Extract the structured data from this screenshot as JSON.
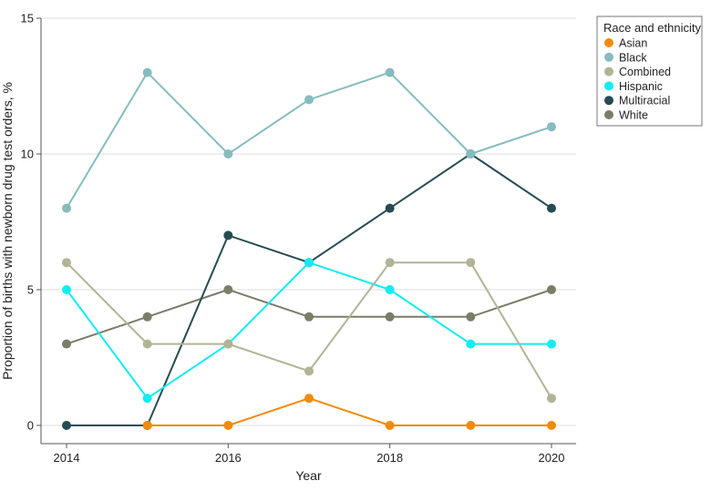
{
  "chart_data": {
    "type": "line",
    "title": "",
    "xlabel": "Year",
    "ylabel": "Proportion of births with newborn drug test orders, %",
    "x": [
      2014,
      2015,
      2016,
      2017,
      2018,
      2019,
      2020
    ],
    "xticks": [
      2014,
      2016,
      2018,
      2020
    ],
    "xlim": [
      2014,
      2020
    ],
    "yticks": [
      0,
      5,
      10,
      15
    ],
    "ylim": [
      0,
      15
    ],
    "grid": "horizontal",
    "legend": {
      "title": "Race and ethnicity",
      "placement": "top-right, outside plot area"
    },
    "series": [
      {
        "name": "Asian",
        "color": "#f28a0c",
        "values": [
          null,
          0,
          0,
          1,
          0,
          0,
          0
        ]
      },
      {
        "name": "Black",
        "color": "#85bcbf",
        "values": [
          8,
          13,
          10,
          12,
          13,
          10,
          11
        ]
      },
      {
        "name": "Combined",
        "color": "#b3b395",
        "values": [
          6,
          3,
          3,
          2,
          6,
          6,
          1
        ]
      },
      {
        "name": "Hispanic",
        "color": "#12ecf2",
        "values": [
          5,
          1,
          3,
          6,
          5,
          3,
          3
        ]
      },
      {
        "name": "Multiracial",
        "color": "#254c52",
        "values": [
          0,
          0,
          7,
          6,
          8,
          10,
          8
        ]
      },
      {
        "name": "White",
        "color": "#7b7d68",
        "values": [
          3,
          4,
          5,
          4,
          4,
          4,
          5
        ]
      }
    ]
  }
}
